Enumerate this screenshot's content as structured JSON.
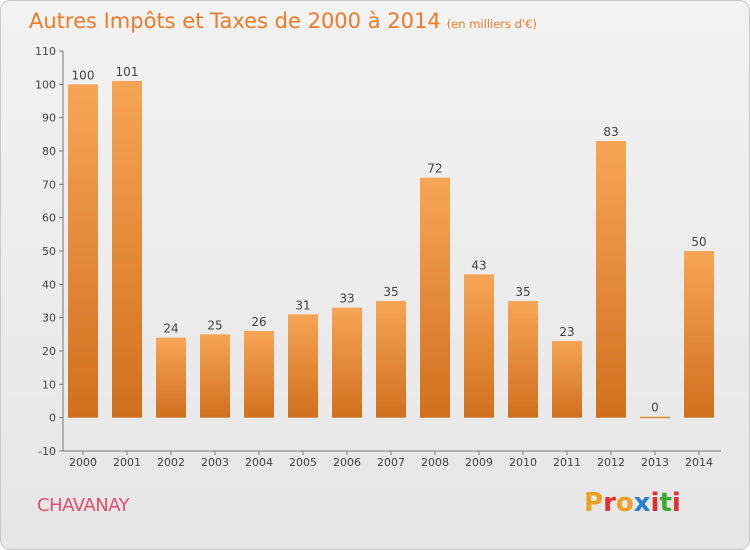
{
  "header": {
    "title": "Autres Impôts et Taxes de 2000 à 2014",
    "subtitle": "(en milliers d'€)"
  },
  "footer": {
    "commune": "CHAVANAY",
    "brand_letters": [
      "P",
      "r",
      "o",
      "x",
      "i",
      "t",
      "i"
    ],
    "brand_colors": [
      "#f0a020",
      "#e03030",
      "#f0a020",
      "#2a7fd4",
      "#e03030",
      "#3aaa35",
      "#e03030"
    ]
  },
  "colors": {
    "bar_light": "#f7a555",
    "bar_dark": "#d0701e",
    "title": "#f07a28",
    "commune": "#e0506e"
  },
  "chart_data": {
    "type": "bar",
    "title": "Autres Impôts et Taxes de 2000 à 2014",
    "subtitle": "(en milliers d'€)",
    "categories": [
      "2000",
      "2001",
      "2002",
      "2003",
      "2004",
      "2005",
      "2006",
      "2007",
      "2008",
      "2009",
      "2010",
      "2011",
      "2012",
      "2013",
      "2014"
    ],
    "values": [
      100,
      101,
      24,
      25,
      26,
      31,
      33,
      35,
      72,
      43,
      35,
      23,
      83,
      0,
      50
    ],
    "ylim": [
      -10,
      110
    ],
    "yticks": [
      -10,
      0,
      10,
      20,
      30,
      40,
      50,
      60,
      70,
      80,
      90,
      100,
      110
    ],
    "grid": false,
    "data_labels": true
  }
}
